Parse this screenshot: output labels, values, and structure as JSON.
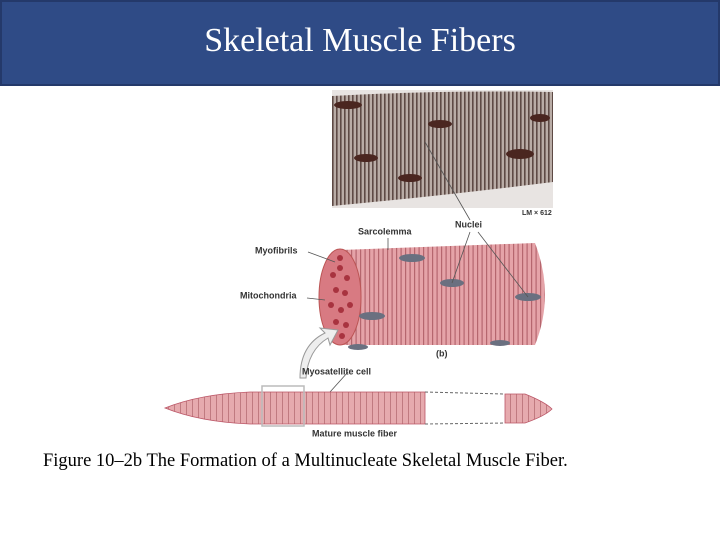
{
  "header": {
    "title": "Skeletal Muscle Fibers"
  },
  "figure": {
    "labels": {
      "sarcolemma": "Sarcolemma",
      "nuclei": "Nuclei",
      "magnification": "LM × 612",
      "myofibrils": "Myofibrils",
      "mitochondria": "Mitochondria",
      "panel": "(b)",
      "myosatellite": "Myosatellite cell",
      "mature": "Mature muscle fiber"
    }
  },
  "caption": "Figure 10–2b The Formation of a Multinucleate Skeletal Muscle Fiber."
}
